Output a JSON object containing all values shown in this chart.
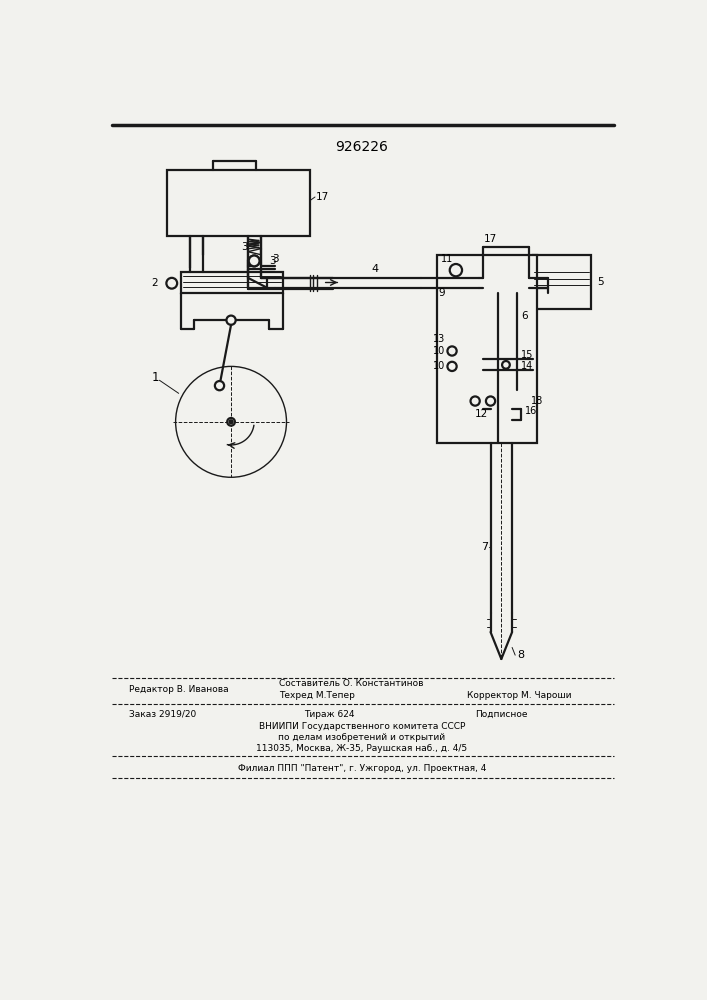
{
  "title": "926226",
  "bg_color": "#f2f2ee",
  "line_color": "#1a1a1a",
  "lw": 1.6,
  "mlw": 1.0,
  "tlw": 0.7,
  "footer": {
    "line1_left": "Редактор В. Иванова",
    "line1_center": "Составитель О. Константинов",
    "line2_center": "Техред М.Тепер",
    "line2_right": "Корректор М. Чароши",
    "line3_left": "Заказ 2919/20",
    "line3_center": "Тираж 624",
    "line3_right": "Подписное",
    "line4": "ВНИИПИ Государственного комитета СССР",
    "line5": "по делам изобретений и открытий",
    "line6": "113035, Москва, Ж-35, Раушская наб., д. 4/5",
    "line7": "Филиал ППП \"Патент\", г. Ужгород, ул. Проектная, 4"
  }
}
